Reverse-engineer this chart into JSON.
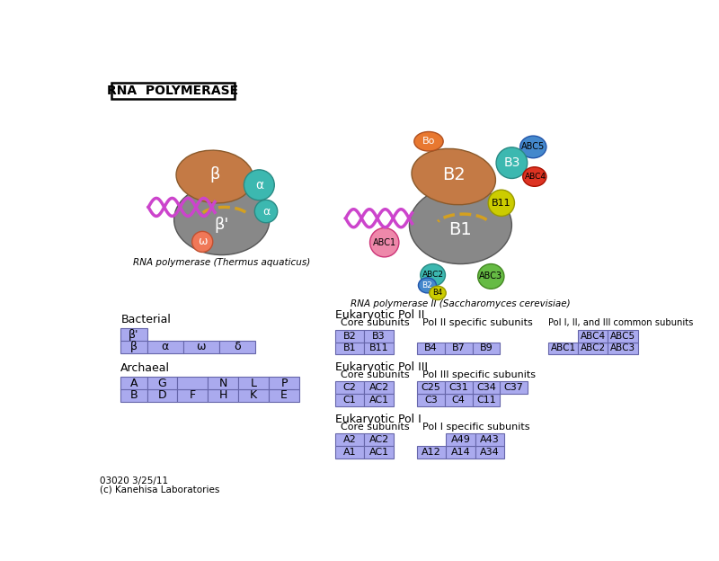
{
  "title": "RNA  POLYMERASE",
  "bg_color": "#ffffff",
  "cell_color": "#aaaaee",
  "cell_border": "#6666aa",
  "footnote": "03020 3/25/11\n(c) Kanehisa Laboratories",
  "bacterial_label": "Bacterial",
  "archaeal_label": "Archaeal",
  "bact_row1": [
    "β"
  ],
  "bact_row2": [
    "β'",
    "α",
    "ω",
    "δ"
  ],
  "arch_row1_left": [
    "B",
    "A"
  ],
  "arch_row1": [
    "D",
    "F",
    "H",
    "K",
    "E"
  ],
  "arch_row2": [
    "G",
    "",
    "N",
    "L",
    "P"
  ],
  "euk2_title": "Eukaryotic Pol II",
  "euk2_core_label": "Core subunits",
  "euk2_core": [
    [
      "B2",
      "B3"
    ],
    [
      "B1",
      "B11"
    ]
  ],
  "euk2_spec_label": "Pol II specific subunits",
  "euk2_spec": [
    [
      "B4",
      "B7",
      "B9"
    ]
  ],
  "euk2_common_label": "Pol I, II, and III common subunits",
  "euk2_common": [
    [
      "ABC1",
      "ABC2",
      "ABC3"
    ],
    [
      "ABC4",
      "ABC5"
    ]
  ],
  "euk3_title": "Eukaryotic Pol III",
  "euk3_core_label": "Core subunits",
  "euk3_core": [
    [
      "C2",
      "AC2"
    ],
    [
      "C1",
      "AC1"
    ]
  ],
  "euk3_spec_label": "Pol III specific subunits",
  "euk3_spec": [
    [
      "C3",
      "C4",
      "C11"
    ],
    [
      "C25",
      "C31",
      "C34",
      "C37"
    ]
  ],
  "euk1_title": "Eukaryotic Pol I",
  "euk1_core_label": "Core subunits",
  "euk1_core": [
    [
      "A2",
      "AC2"
    ],
    [
      "A1",
      "AC1"
    ]
  ],
  "euk1_spec_label": "Pol I specific subunits",
  "euk1_spec": [
    [
      "A12",
      "A14",
      "A34"
    ],
    [
      "A49",
      "A43"
    ]
  ],
  "caption_left": "RNA polymerase (Thermus aquaticus)",
  "caption_right": "RNA polymerase II (Saccharomyces cerevisiae)"
}
